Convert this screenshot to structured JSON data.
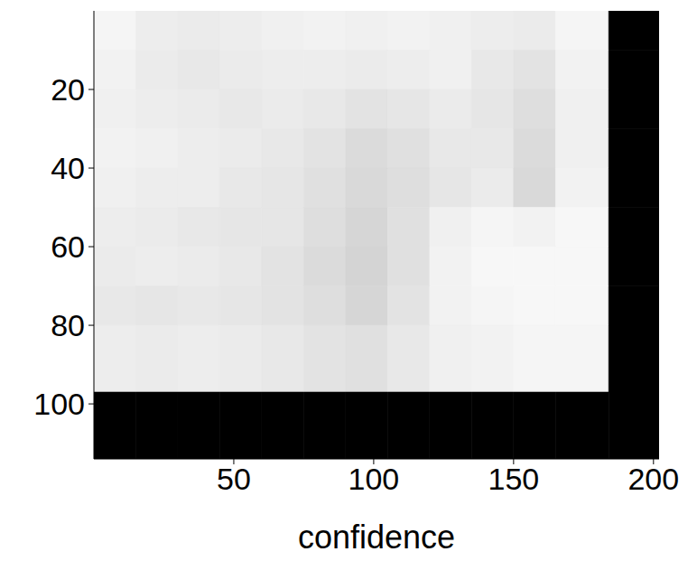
{
  "chart_data": {
    "type": "heatmap",
    "xlabel": "confidence",
    "xlim": [
      0,
      202
    ],
    "ylim": [
      0,
      114
    ],
    "xticks": [
      50,
      100,
      150,
      200
    ],
    "yticks": [
      20,
      40,
      60,
      80,
      100
    ],
    "x_edges": [
      0,
      15,
      30,
      45,
      60,
      75,
      90,
      105,
      120,
      135,
      150,
      165,
      184,
      202
    ],
    "y_edges": [
      0,
      10,
      20,
      30,
      40,
      50,
      60,
      70,
      80,
      97,
      114
    ],
    "clim": [
      0,
      1
    ],
    "cells": [
      [
        0.96,
        0.93,
        0.92,
        0.93,
        0.94,
        0.95,
        0.94,
        0.95,
        0.94,
        0.93,
        0.92,
        0.96,
        0
      ],
      [
        0.95,
        0.92,
        0.91,
        0.92,
        0.93,
        0.93,
        0.92,
        0.93,
        0.94,
        0.91,
        0.89,
        0.95,
        0
      ],
      [
        0.94,
        0.93,
        0.92,
        0.91,
        0.92,
        0.91,
        0.89,
        0.9,
        0.92,
        0.9,
        0.87,
        0.94,
        0
      ],
      [
        0.95,
        0.94,
        0.93,
        0.92,
        0.91,
        0.89,
        0.86,
        0.88,
        0.91,
        0.91,
        0.86,
        0.94,
        0
      ],
      [
        0.94,
        0.93,
        0.93,
        0.91,
        0.9,
        0.88,
        0.85,
        0.87,
        0.9,
        0.92,
        0.85,
        0.95,
        0
      ],
      [
        0.93,
        0.92,
        0.91,
        0.9,
        0.9,
        0.87,
        0.84,
        0.88,
        0.94,
        0.96,
        0.95,
        0.97,
        0
      ],
      [
        0.92,
        0.93,
        0.92,
        0.91,
        0.89,
        0.86,
        0.83,
        0.88,
        0.95,
        0.97,
        0.97,
        0.97,
        0
      ],
      [
        0.91,
        0.9,
        0.91,
        0.9,
        0.89,
        0.87,
        0.84,
        0.89,
        0.95,
        0.96,
        0.97,
        0.97,
        0
      ],
      [
        0.93,
        0.92,
        0.93,
        0.92,
        0.91,
        0.89,
        0.88,
        0.91,
        0.94,
        0.95,
        0.96,
        0.96,
        0
      ],
      [
        0,
        0,
        0,
        0,
        0,
        0,
        0,
        0,
        0,
        0,
        0,
        0,
        0
      ]
    ]
  }
}
